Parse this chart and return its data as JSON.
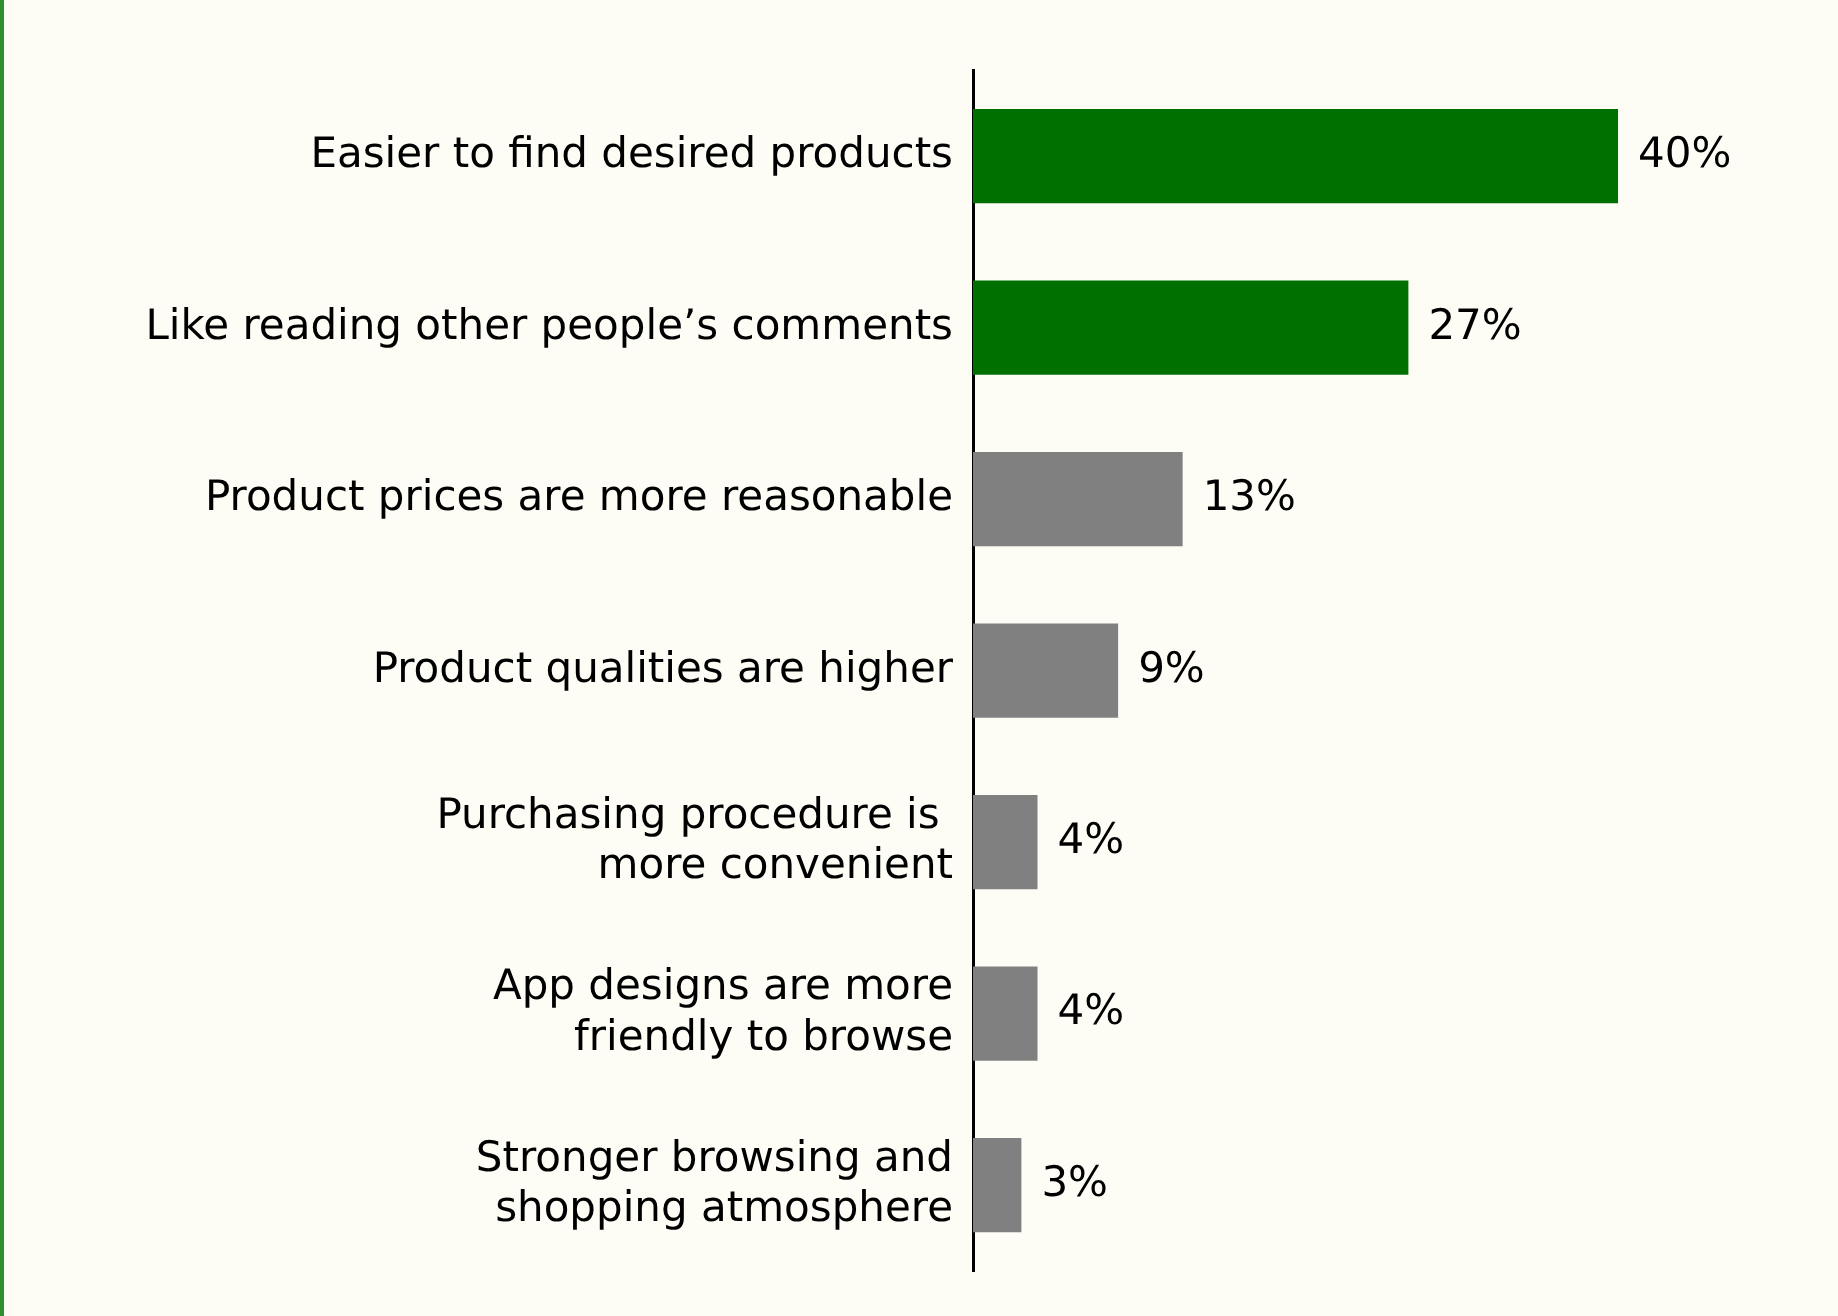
{
  "chart_data": {
    "type": "bar",
    "orientation": "horizontal",
    "categories": [
      "Easier to find desired products",
      "Like reading other people’s comments",
      "Product prices are more reasonable",
      "Product qualities are higher",
      "Purchasing procedure is \nmore convenient",
      "App designs are more\nfriendly to browse",
      "Stronger browsing and\nshopping atmosphere"
    ],
    "values": [
      40,
      27,
      13,
      9,
      4,
      4,
      3
    ],
    "colors": [
      "#007000",
      "#007000",
      "#808080",
      "#808080",
      "#808080",
      "#808080",
      "#808080"
    ],
    "value_labels": [
      "40%",
      "27%",
      "13%",
      "9%",
      "4%",
      "4%",
      "3%"
    ],
    "legend": false
  }
}
